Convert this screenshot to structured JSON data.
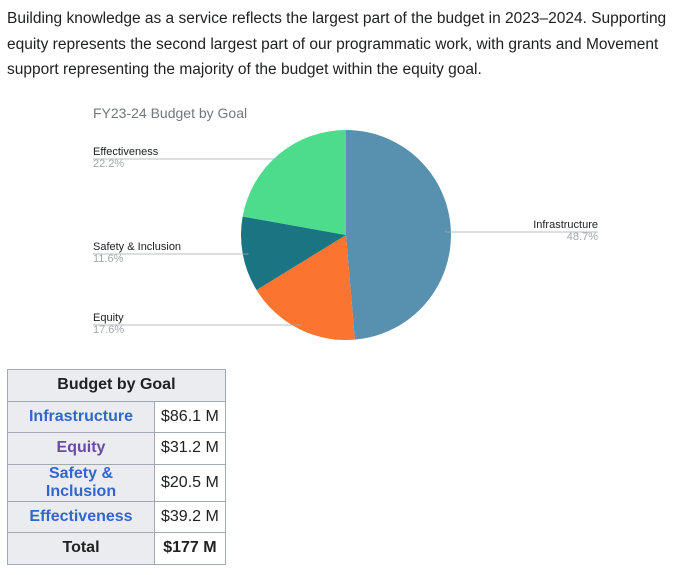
{
  "intro": "Building knowledge as a service reflects the largest part of the budget in 2023–2024. Supporting equity represents the second largest part of our programmatic work, with grants and Movement support representing the majority of the budget within the equity goal.",
  "chart_data": {
    "type": "pie",
    "title": "FY23-24 Budget by Goal",
    "slices": [
      {
        "label": "Infrastructure",
        "value": 48.7,
        "pct_label": "48.7%",
        "color": "#5890b0"
      },
      {
        "label": "Equity",
        "value": 17.6,
        "pct_label": "17.6%",
        "color": "#fb7430"
      },
      {
        "label": "Safety & Inclusion",
        "value": 11.6,
        "pct_label": "11.6%",
        "color": "#1a7482"
      },
      {
        "label": "Effectiveness",
        "value": 22.2,
        "pct_label": "22.2%",
        "color": "#4cdc8c"
      }
    ]
  },
  "table": {
    "caption": "Budget by Goal",
    "rows": [
      {
        "goal": "Infrastructure",
        "amount": "$86.1 M"
      },
      {
        "goal": "Equity",
        "amount": "$31.2 M"
      },
      {
        "goal": "Safety & Inclusion",
        "amount": "$20.5 M"
      },
      {
        "goal": "Effectiveness",
        "amount": "$39.2 M"
      }
    ],
    "total_label": "Total",
    "total_amount": "$177 M"
  }
}
